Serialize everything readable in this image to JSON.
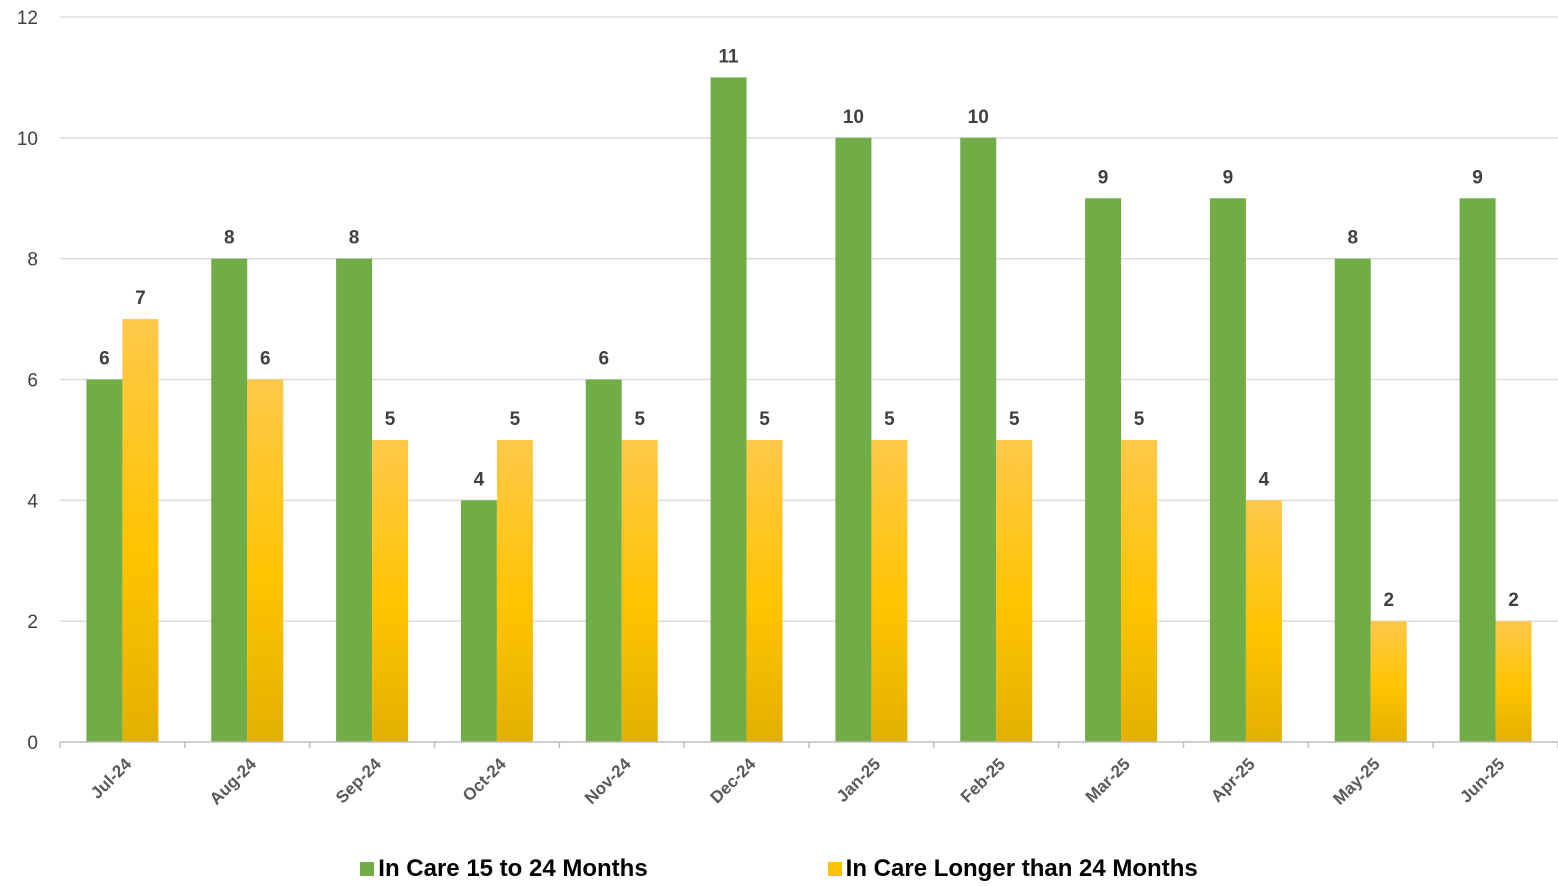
{
  "chart_data": {
    "type": "bar",
    "categories": [
      "Jul-24",
      "Aug-24",
      "Sep-24",
      "Oct-24",
      "Nov-24",
      "Dec-24",
      "Jan-25",
      "Feb-25",
      "Mar-25",
      "Apr-25",
      "May-25",
      "Jun-25"
    ],
    "series": [
      {
        "name": "In Care 15 to 24 Months",
        "color": "#70AD47",
        "values": [
          6,
          8,
          8,
          4,
          6,
          11,
          10,
          10,
          9,
          9,
          8,
          9
        ]
      },
      {
        "name": "In Care Longer than 24 Months",
        "color": "#FFC000",
        "values": [
          7,
          6,
          5,
          5,
          5,
          5,
          5,
          5,
          5,
          4,
          2,
          2
        ]
      }
    ],
    "yticks": [
      0,
      2,
      4,
      6,
      8,
      10,
      12
    ],
    "ylim": [
      0,
      12
    ],
    "grid": true,
    "legend_position": "bottom",
    "data_labels": true
  }
}
